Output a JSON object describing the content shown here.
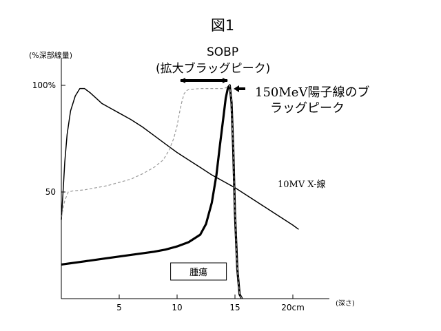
{
  "chart_data": {
    "type": "line",
    "title": "図1",
    "ylabel": "(%深部線量)",
    "xlabel": "(深さ)",
    "xlim": [
      0,
      21.8
    ],
    "ylim": [
      0,
      100
    ],
    "grid": false,
    "x_ticks": [
      {
        "value": 5,
        "label": "5"
      },
      {
        "value": 10,
        "label": "10"
      },
      {
        "value": 15,
        "label": "15"
      },
      {
        "value": 20,
        "label": "20cm"
      }
    ],
    "y_ticks": [
      {
        "value": 50,
        "label": "50"
      },
      {
        "value": 100,
        "label": "100%"
      }
    ],
    "series": [
      {
        "name": "10MV X-線",
        "color": "#000000",
        "style": "solid",
        "x": [
          0.0,
          0.15,
          0.3,
          0.5,
          0.8,
          1.2,
          1.6,
          2.0,
          2.5,
          3.0,
          3.5,
          4.0,
          5.0,
          6.0,
          7.0,
          8.0,
          9.0,
          10.0,
          11.0,
          12.0,
          13.0,
          14.0,
          15.0,
          16.0,
          17.0,
          18.0,
          19.0,
          20.0,
          20.5
        ],
        "y": [
          37,
          50,
          64,
          77,
          88,
          95,
          98.5,
          98.5,
          96.5,
          94,
          91.5,
          90,
          87,
          84,
          80.5,
          76.5,
          72.5,
          68.5,
          65,
          61.5,
          58,
          55,
          52,
          48.5,
          45,
          41.5,
          38,
          34.5,
          32.5
        ]
      },
      {
        "name": "150MeV陽子線のブラッグピーク",
        "color": "#000000",
        "style": "bold",
        "x": [
          0.0,
          2.0,
          4.0,
          6.0,
          8.0,
          9.0,
          10.0,
          11.0,
          12.0,
          12.5,
          13.0,
          13.4,
          13.7,
          14.0,
          14.2,
          14.4,
          14.55,
          14.7,
          14.85,
          15.0,
          15.2,
          15.4,
          15.6
        ],
        "y": [
          16,
          17.5,
          19,
          20.5,
          22,
          23,
          24.5,
          26.5,
          30,
          35,
          45,
          58,
          72,
          85,
          94,
          99,
          100,
          92,
          70,
          40,
          14,
          2,
          0
        ]
      },
      {
        "name": "SOBP(拡大ブラッグピーク)",
        "color": "#9a9a9a",
        "style": "dashed",
        "x": [
          0.0,
          0.3,
          0.6,
          1.0,
          2.0,
          3.0,
          4.0,
          5.0,
          6.0,
          7.0,
          8.0,
          8.8,
          9.3,
          9.7,
          10.0,
          10.2,
          10.4,
          10.6,
          10.8,
          11.0,
          12.0,
          13.0,
          14.0,
          14.3,
          14.55,
          14.7,
          14.85,
          15.0,
          15.2,
          15.4,
          15.6
        ],
        "y": [
          38,
          46,
          50,
          50.5,
          51,
          52,
          53,
          54.5,
          56,
          58.5,
          61.5,
          65,
          69.5,
          75,
          81,
          87,
          92,
          96,
          97.5,
          98,
          98.5,
          98.5,
          98.5,
          99,
          100,
          92,
          70,
          40,
          14,
          2,
          0
        ]
      }
    ],
    "annotations": {
      "sobp_line1": "SOBP",
      "sobp_line2": "(拡大ブラッグピーク)",
      "proton_line1": "150MeV陽子線のブ",
      "proton_line2": "ラッグピーク",
      "xray_label": "10MV X-線",
      "tumor_label": "腫瘍",
      "tumor_range": [
        9.5,
        14.5
      ]
    }
  }
}
